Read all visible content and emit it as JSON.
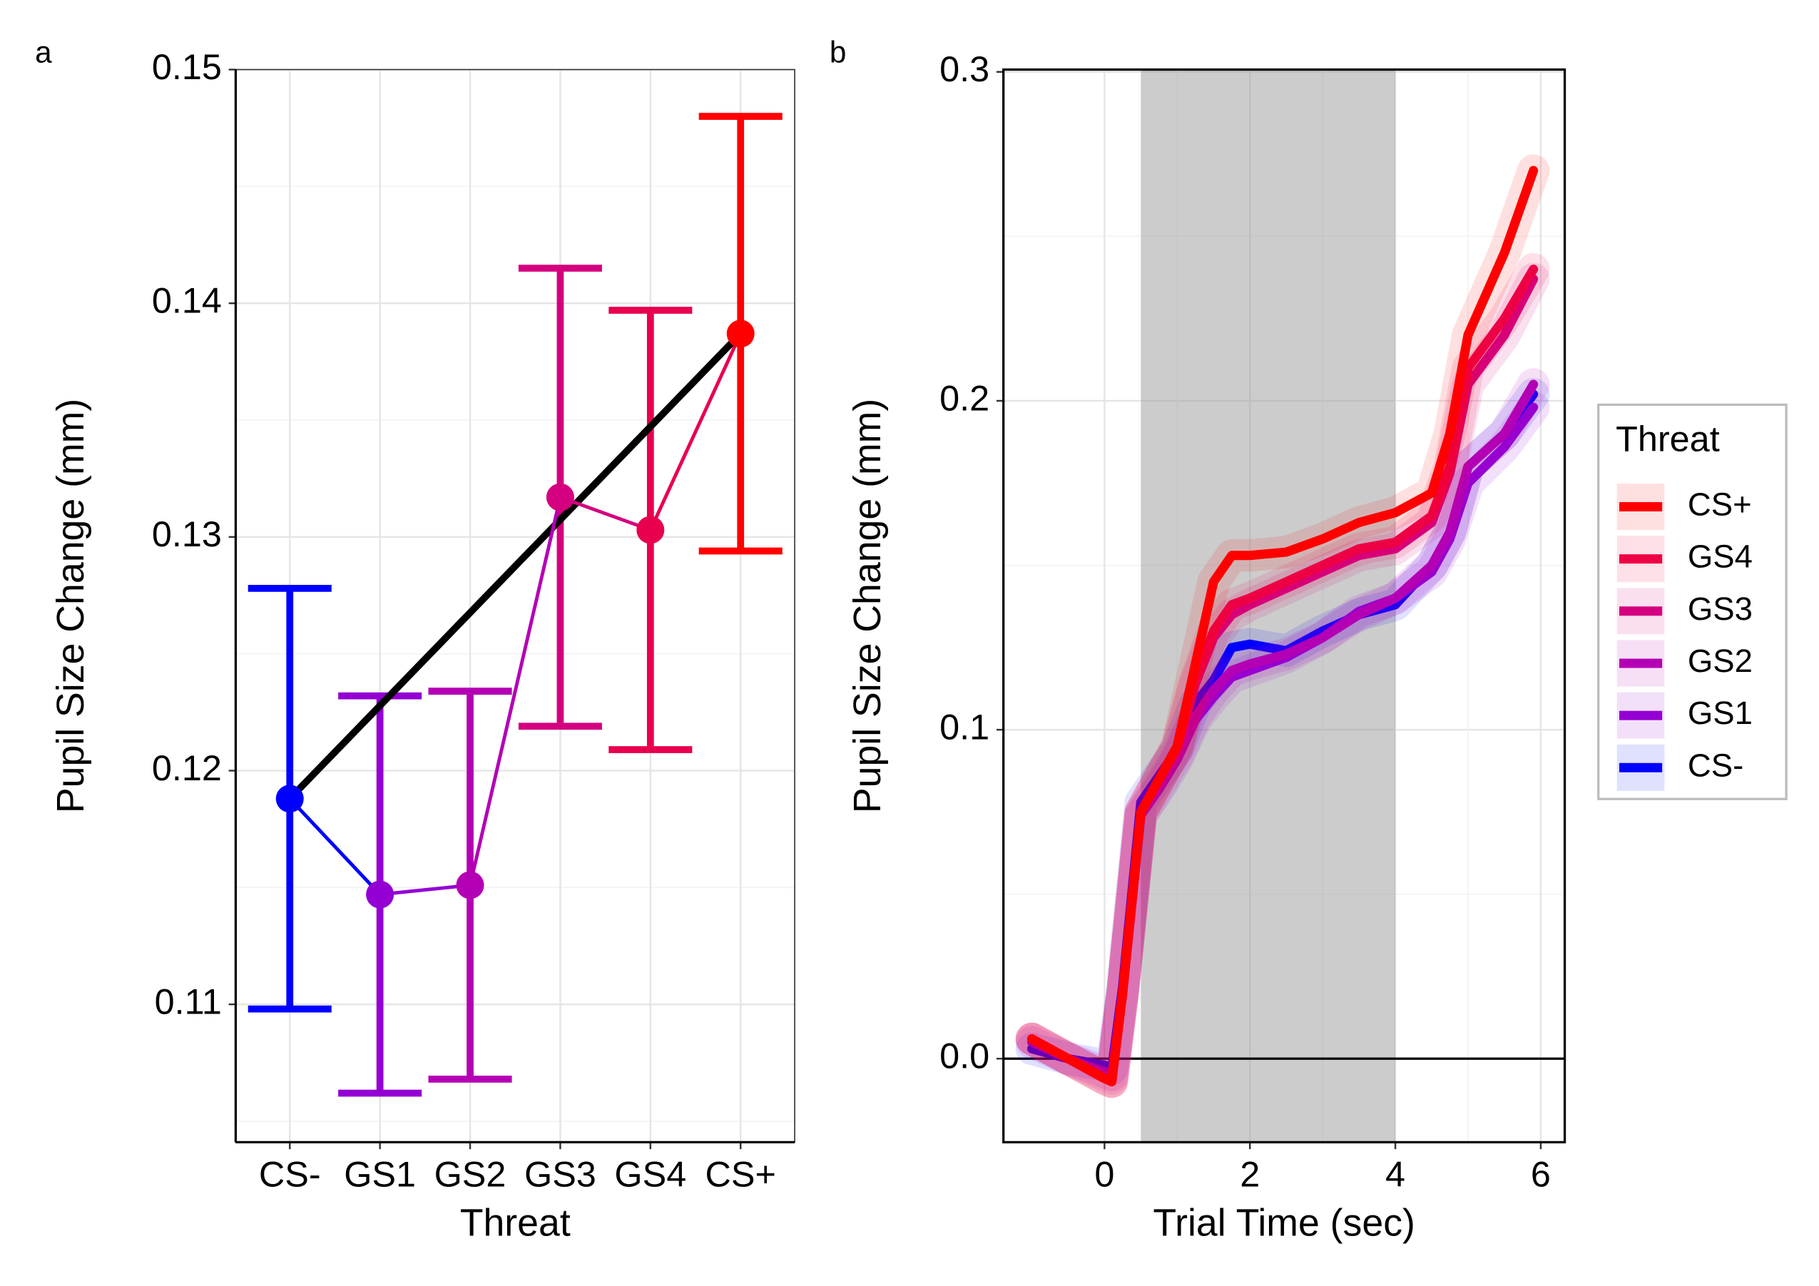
{
  "chart_data": [
    {
      "type": "errorbar",
      "panel_label": "a",
      "x_label": "Threat",
      "y_label": "Pupil Size Change (mm)",
      "categories": [
        "CS-",
        "GS1",
        "GS2",
        "GS3",
        "GS4",
        "CS+"
      ],
      "values": [
        0.1188,
        0.1147,
        0.1151,
        0.1317,
        0.1303,
        0.1387
      ],
      "errors": [
        0.009,
        0.0085,
        0.0083,
        0.0098,
        0.0094,
        0.0093
      ],
      "colors": [
        "#0000ff",
        "#9400d3",
        "#b400b4",
        "#d4007f",
        "#e8004e",
        "#ff0000"
      ],
      "trend_line": {
        "color": "#000000",
        "values": [
          0.1188,
          0.1387
        ]
      },
      "ylim": [
        0.1041,
        0.15
      ],
      "yticks": [
        0.11,
        0.12,
        0.13,
        0.14,
        0.15
      ],
      "grid": true
    },
    {
      "type": "line",
      "panel_label": "b",
      "x_label": "Trial Time (sec)",
      "y_label": "Pupil Size Change (mm)",
      "legend_title": "Threat",
      "legend": "right",
      "shaded_region": [
        0.5,
        4
      ],
      "hline": 0,
      "x": [
        -1,
        -0.5,
        0,
        0.1,
        0.25,
        0.5,
        0.75,
        1,
        1.25,
        1.5,
        1.75,
        2,
        2.5,
        3,
        3.5,
        4,
        4.5,
        4.75,
        5,
        5.5,
        5.9
      ],
      "series": [
        {
          "name": "CS+",
          "color": "#ff0000",
          "values": [
            0.006,
            0.0,
            -0.006,
            -0.007,
            0.02,
            0.075,
            0.085,
            0.095,
            0.12,
            0.145,
            0.153,
            0.153,
            0.154,
            0.158,
            0.163,
            0.166,
            0.172,
            0.19,
            0.22,
            0.245,
            0.27
          ]
        },
        {
          "name": "GS4",
          "color": "#ee0044",
          "values": [
            0.006,
            0.0,
            -0.006,
            -0.007,
            0.02,
            0.075,
            0.085,
            0.095,
            0.115,
            0.13,
            0.138,
            0.14,
            0.145,
            0.15,
            0.155,
            0.157,
            0.165,
            0.18,
            0.21,
            0.225,
            0.24
          ]
        },
        {
          "name": "GS3",
          "color": "#d4007f",
          "values": [
            0.006,
            0.0,
            -0.006,
            -0.007,
            0.02,
            0.075,
            0.085,
            0.094,
            0.114,
            0.128,
            0.135,
            0.138,
            0.143,
            0.148,
            0.153,
            0.155,
            0.163,
            0.178,
            0.205,
            0.22,
            0.237
          ]
        },
        {
          "name": "GS2",
          "color": "#b400b4",
          "values": [
            0.006,
            0.0,
            -0.005,
            -0.006,
            0.02,
            0.074,
            0.083,
            0.092,
            0.104,
            0.112,
            0.118,
            0.12,
            0.123,
            0.128,
            0.135,
            0.14,
            0.15,
            0.16,
            0.18,
            0.19,
            0.205
          ]
        },
        {
          "name": "GS1",
          "color": "#9400d3",
          "values": [
            0.005,
            0.0,
            -0.004,
            -0.005,
            0.02,
            0.074,
            0.082,
            0.091,
            0.103,
            0.11,
            0.116,
            0.118,
            0.122,
            0.128,
            0.136,
            0.14,
            0.148,
            0.158,
            0.175,
            0.186,
            0.198
          ]
        },
        {
          "name": "CS-",
          "color": "#0000ff",
          "values": [
            0.003,
            0.0,
            -0.002,
            -0.003,
            0.022,
            0.078,
            0.086,
            0.094,
            0.108,
            0.115,
            0.125,
            0.126,
            0.124,
            0.13,
            0.135,
            0.138,
            0.15,
            0.16,
            0.18,
            0.19,
            0.202
          ]
        }
      ],
      "xlim": [
        -1.39,
        6.33
      ],
      "xticks": [
        0,
        2,
        4,
        6
      ],
      "ylim": [
        -0.0254,
        0.3007
      ],
      "yticks": [
        {
          "value": 0,
          "label": "0.0"
        },
        0.1,
        0.2,
        0.3
      ],
      "grid": true
    }
  ]
}
